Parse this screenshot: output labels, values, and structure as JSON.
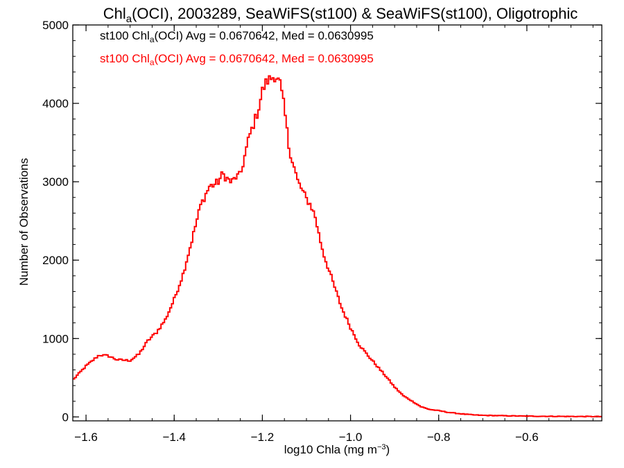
{
  "chart_data": {
    "type": "line",
    "step": true,
    "title": {
      "prefix": "Chl",
      "sub": "a",
      "rest": "(OCI), 2003289, SeaWiFS(st100) & SeaWiFS(st100), Oligotrophic"
    },
    "xlabel": {
      "text": "log10 Chla (mg m",
      "sup": "−3",
      "close": ")"
    },
    "ylabel": "Number of Observations",
    "xlim": [
      -1.63,
      -0.43
    ],
    "ylim": [
      -50,
      5000
    ],
    "x_ticks": [
      {
        "value": -1.6,
        "label": "−1.6"
      },
      {
        "value": -1.4,
        "label": "−1.4"
      },
      {
        "value": -1.2,
        "label": "−1.2"
      },
      {
        "value": -1.0,
        "label": "−1.0"
      },
      {
        "value": -0.8,
        "label": "−0.8"
      },
      {
        "value": -0.6,
        "label": "−0.6"
      }
    ],
    "y_ticks": [
      {
        "value": 0,
        "label": "0"
      },
      {
        "value": 1000,
        "label": "1000"
      },
      {
        "value": 2000,
        "label": "2000"
      },
      {
        "value": 3000,
        "label": "3000"
      },
      {
        "value": 4000,
        "label": "4000"
      },
      {
        "value": 5000,
        "label": "5000"
      }
    ],
    "legend": [
      {
        "color": "#000000",
        "prefix": "st100 Chl",
        "sub": "a",
        "rest": "(OCI) Avg = 0.0670642, Med = 0.0630995"
      },
      {
        "color": "#ff0000",
        "prefix": "st100 Chl",
        "sub": "a",
        "rest": "(OCI) Avg = 0.0670642, Med = 0.0630995"
      }
    ],
    "series": [
      {
        "color": "#ff0000",
        "x": [
          -1.63,
          -1.6,
          -1.57,
          -1.55,
          -1.53,
          -1.5,
          -1.48,
          -1.46,
          -1.44,
          -1.42,
          -1.4,
          -1.38,
          -1.36,
          -1.34,
          -1.32,
          -1.31,
          -1.3,
          -1.29,
          -1.28,
          -1.27,
          -1.26,
          -1.25,
          -1.23,
          -1.21,
          -1.2,
          -1.19,
          -1.18,
          -1.17,
          -1.165,
          -1.16,
          -1.15,
          -1.14,
          -1.12,
          -1.1,
          -1.09,
          -1.08,
          -1.07,
          -1.06,
          -1.04,
          -1.02,
          -1.0,
          -0.98,
          -0.96,
          -0.94,
          -0.92,
          -0.9,
          -0.88,
          -0.86,
          -0.84,
          -0.82,
          -0.8,
          -0.78,
          -0.75,
          -0.72,
          -0.7,
          -0.65,
          -0.6,
          -0.55,
          -0.5,
          -0.43
        ],
        "y": [
          470,
          650,
          790,
          780,
          730,
          720,
          800,
          970,
          1080,
          1240,
          1500,
          1820,
          2250,
          2700,
          2940,
          2960,
          3000,
          3100,
          3040,
          2990,
          3060,
          3080,
          3570,
          3900,
          4160,
          4280,
          4320,
          4360,
          4300,
          4250,
          3930,
          3450,
          3010,
          2780,
          2700,
          2550,
          2280,
          2060,
          1720,
          1390,
          1140,
          920,
          780,
          650,
          520,
          380,
          270,
          200,
          130,
          95,
          80,
          60,
          40,
          25,
          20,
          15,
          10,
          8,
          6,
          5
        ]
      }
    ]
  }
}
